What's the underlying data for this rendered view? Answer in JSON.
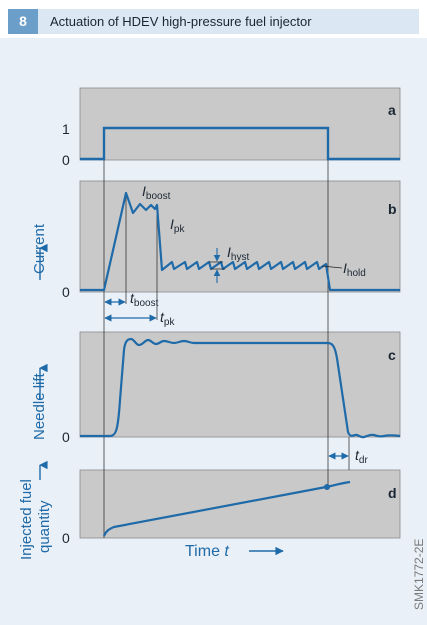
{
  "figure": {
    "number": "8",
    "title": "Actuation of HDEV high-pressure fuel injector",
    "source_code": "SMK1772-2E"
  },
  "panels": {
    "a": {
      "letter": "a",
      "tick_one": "1",
      "tick_zero": "0"
    },
    "b": {
      "letter": "b",
      "ylabel": "Current",
      "tick_zero": "0",
      "i_boost": {
        "main": "I",
        "sub": "boost"
      },
      "i_pk": {
        "main": "I",
        "sub": "pk"
      },
      "i_hyst": {
        "main": "I",
        "sub": "hyst"
      },
      "i_hold": {
        "main": "I",
        "sub": "hold"
      },
      "t_boost": {
        "main": "t",
        "sub": "boost"
      },
      "t_pk": {
        "main": "t",
        "sub": "pk"
      }
    },
    "c": {
      "letter": "c",
      "ylabel": "Needle lift",
      "tick_zero": "0",
      "t_dr": {
        "main": "t",
        "sub": "dr"
      }
    },
    "d": {
      "letter": "d",
      "ylabel_line1": "Injected fuel",
      "ylabel_line2": "quantity",
      "tick_zero": "0"
    }
  },
  "xaxis": {
    "label": "Time ",
    "symbol": "t"
  },
  "colors": {
    "curve": "#1f6aa8",
    "panel_fill": "#c9c9c9",
    "frame": "#8a8a8a",
    "background": "#e9f0f7",
    "title_bar": "#dbe7f2",
    "number_badge": "#6b9ec9"
  }
}
